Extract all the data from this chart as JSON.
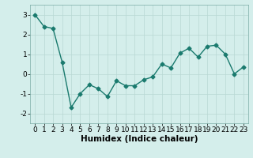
{
  "x": [
    0,
    1,
    2,
    3,
    4,
    5,
    6,
    7,
    8,
    9,
    10,
    11,
    12,
    13,
    14,
    15,
    16,
    17,
    18,
    19,
    20,
    21,
    22,
    23
  ],
  "y": [
    3.0,
    2.4,
    2.3,
    0.6,
    -1.7,
    -1.0,
    -0.55,
    -0.75,
    -1.15,
    -0.35,
    -0.6,
    -0.6,
    -0.3,
    -0.15,
    0.5,
    0.3,
    1.05,
    1.3,
    0.85,
    1.4,
    1.45,
    1.0,
    0.0,
    0.35
  ],
  "line_color": "#1a7a6e",
  "marker": "D",
  "markersize": 2.5,
  "linewidth": 1.0,
  "xlabel": "Humidex (Indice chaleur)",
  "xlim": [
    -0.5,
    23.5
  ],
  "ylim": [
    -2.5,
    3.5
  ],
  "yticks": [
    -2,
    -1,
    0,
    1,
    2,
    3
  ],
  "xticks": [
    0,
    1,
    2,
    3,
    4,
    5,
    6,
    7,
    8,
    9,
    10,
    11,
    12,
    13,
    14,
    15,
    16,
    17,
    18,
    19,
    20,
    21,
    22,
    23
  ],
  "bg_color": "#d4eeeb",
  "grid_color": "#b8d8d4",
  "tick_fontsize": 6.5,
  "label_fontsize": 7.5
}
